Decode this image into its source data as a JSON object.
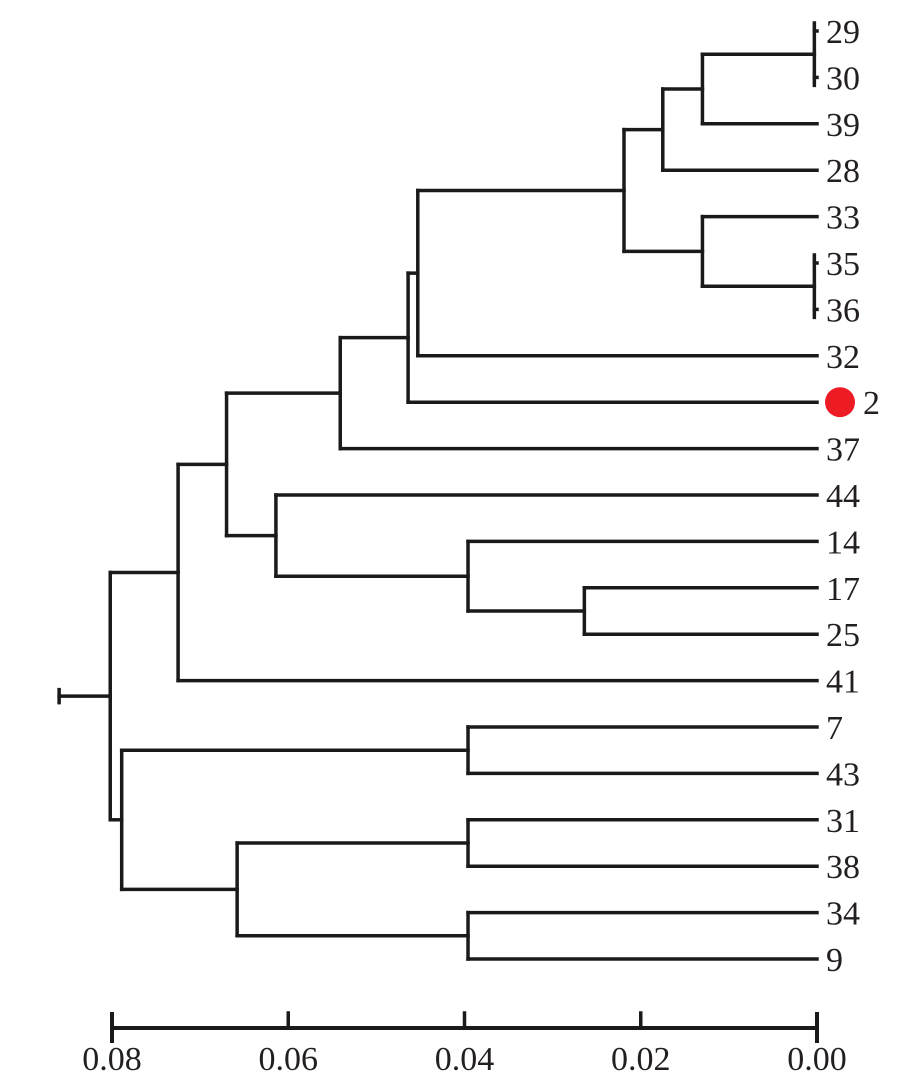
{
  "figure": {
    "title": "",
    "background": "#ffffff"
  },
  "chart_data": {
    "type": "dendrogram",
    "orientation": "leaves-right-root-left",
    "title": "",
    "xlabel": "",
    "ylabel": "",
    "axis": {
      "position": "bottom",
      "tick_labels": [
        "0.08",
        "0.06",
        "0.04",
        "0.02",
        "0.00"
      ],
      "tick_values": [
        0.08,
        0.06,
        0.04,
        0.02,
        0.0
      ],
      "min": 0.0,
      "max": 0.08,
      "direction": "distance-decreases-rightward",
      "grid": false
    },
    "leaf_order": [
      "29",
      "30",
      "39",
      "28",
      "33",
      "35",
      "36",
      "32",
      "2",
      "37",
      "44",
      "14",
      "17",
      "25",
      "41",
      "7",
      "43",
      "31",
      "38",
      "34",
      "9"
    ],
    "highlighted_leaf": {
      "label": "2",
      "marker": "filled-circle",
      "color": "#ed1c24"
    },
    "root_stub_height": 0.086,
    "tree": {
      "h": 0.0802,
      "c": [
        {
          "h": 0.0725,
          "c": [
            {
              "h": 0.067,
              "c": [
                {
                  "h": 0.0541,
                  "c": [
                    {
                      "h": 0.0464,
                      "c": [
                        {
                          "h": 0.0453,
                          "c": [
                            {
                              "h": 0.0219,
                              "c": [
                                {
                                  "h": 0.0175,
                                  "c": [
                                    {
                                      "h": 0.013,
                                      "c": [
                                        {
                                          "h": 0.0003,
                                          "c": [
                                            {
                                              "leaf": "29"
                                            },
                                            {
                                              "leaf": "30"
                                            }
                                          ]
                                        },
                                        {
                                          "leaf": "39"
                                        }
                                      ]
                                    },
                                    {
                                      "leaf": "28"
                                    }
                                  ]
                                },
                                {
                                  "h": 0.013,
                                  "c": [
                                    {
                                      "leaf": "33"
                                    },
                                    {
                                      "h": 0.0003,
                                      "c": [
                                        {
                                          "leaf": "35"
                                        },
                                        {
                                          "leaf": "36"
                                        }
                                      ]
                                    }
                                  ]
                                }
                              ]
                            },
                            {
                              "leaf": "32"
                            }
                          ]
                        },
                        {
                          "leaf": "2"
                        }
                      ]
                    },
                    {
                      "leaf": "37"
                    }
                  ]
                },
                {
                  "h": 0.0614,
                  "c": [
                    {
                      "leaf": "44"
                    },
                    {
                      "h": 0.0396,
                      "c": [
                        {
                          "leaf": "14"
                        },
                        {
                          "h": 0.0264,
                          "c": [
                            {
                              "leaf": "17"
                            },
                            {
                              "leaf": "25"
                            }
                          ]
                        }
                      ]
                    }
                  ]
                }
              ]
            },
            {
              "leaf": "41"
            }
          ]
        },
        {
          "h": 0.0789,
          "c": [
            {
              "h": 0.0396,
              "c": [
                {
                  "leaf": "7"
                },
                {
                  "leaf": "43"
                }
              ]
            },
            {
              "h": 0.0658,
              "c": [
                {
                  "h": 0.0396,
                  "c": [
                    {
                      "leaf": "31"
                    },
                    {
                      "leaf": "38"
                    }
                  ]
                },
                {
                  "h": 0.0396,
                  "c": [
                    {
                      "leaf": "34"
                    },
                    {
                      "leaf": "9"
                    }
                  ]
                }
              ]
            }
          ]
        }
      ]
    },
    "colors": {
      "line": "#1a1a1a",
      "text": "#231f20",
      "marker": "#ed1c24",
      "background": "#ffffff"
    }
  }
}
